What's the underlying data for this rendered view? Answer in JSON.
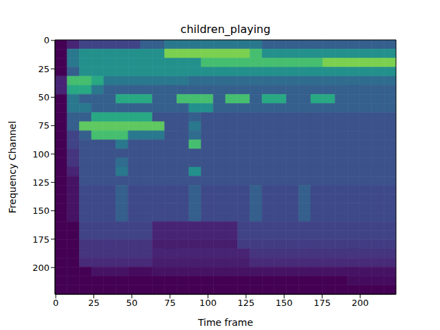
{
  "chart_data": {
    "type": "heatmap",
    "title": "children_playing",
    "xlabel": "Time frame",
    "ylabel": "Frequency Channel",
    "xlim": [
      -0.5,
      223.5
    ],
    "ylim": [
      223.5,
      -0.5
    ],
    "xticks": [
      0,
      25,
      50,
      75,
      100,
      125,
      150,
      175,
      200
    ],
    "yticks": [
      0,
      25,
      50,
      75,
      100,
      125,
      150,
      175,
      200
    ],
    "grid": false,
    "color_range": [
      0,
      1
    ],
    "cells": [
      [
        0,
        0.1,
        0.2,
        0.2,
        0.2,
        0.2,
        0.2,
        0.3,
        0.3,
        0.4,
        0.4,
        0.4,
        0.4,
        0.4,
        0.4,
        0.4,
        0.4,
        0.3,
        0.3,
        0.3,
        0.3,
        0.3,
        0.3,
        0.3,
        0.3,
        0.3,
        0.3,
        0.3
      ],
      [
        0,
        0.4,
        0.5,
        0.5,
        0.5,
        0.5,
        0.5,
        0.5,
        0.5,
        0.8,
        0.8,
        0.8,
        0.8,
        0.8,
        0.8,
        0.8,
        0.7,
        0.5,
        0.5,
        0.5,
        0.5,
        0.5,
        0.5,
        0.5,
        0.5,
        0.5,
        0.5,
        0.5
      ],
      [
        0,
        0.4,
        0.5,
        0.5,
        0.5,
        0.5,
        0.5,
        0.5,
        0.5,
        0.5,
        0.5,
        0.5,
        0.7,
        0.7,
        0.7,
        0.7,
        0.7,
        0.7,
        0.7,
        0.7,
        0.7,
        0.7,
        0.8,
        0.8,
        0.8,
        0.8,
        0.8,
        0.8
      ],
      [
        0,
        0.3,
        0.5,
        0.5,
        0.5,
        0.5,
        0.5,
        0.5,
        0.5,
        0.5,
        0.5,
        0.5,
        0.5,
        0.5,
        0.5,
        0.5,
        0.5,
        0.5,
        0.5,
        0.5,
        0.5,
        0.5,
        0.5,
        0.5,
        0.5,
        0.5,
        0.5,
        0.5
      ],
      [
        0.1,
        0.7,
        0.7,
        0.6,
        0.4,
        0.4,
        0.4,
        0.4,
        0.4,
        0.4,
        0.4,
        0.35,
        0.35,
        0.35,
        0.35,
        0.35,
        0.35,
        0.35,
        0.35,
        0.35,
        0.35,
        0.35,
        0.35,
        0.35,
        0.35,
        0.35,
        0.35,
        0.35
      ],
      [
        0.1,
        0.6,
        0.6,
        0.4,
        0.3,
        0.3,
        0.3,
        0.3,
        0.3,
        0.3,
        0.3,
        0.3,
        0.3,
        0.3,
        0.3,
        0.3,
        0.3,
        0.3,
        0.3,
        0.3,
        0.3,
        0.3,
        0.3,
        0.3,
        0.3,
        0.3,
        0.3,
        0.3
      ],
      [
        0,
        0.4,
        0.3,
        0.3,
        0.3,
        0.6,
        0.6,
        0.6,
        0.3,
        0.3,
        0.7,
        0.7,
        0.7,
        0.3,
        0.7,
        0.7,
        0.3,
        0.6,
        0.6,
        0.3,
        0.3,
        0.6,
        0.6,
        0.3,
        0.3,
        0.3,
        0.3,
        0.3
      ],
      [
        0,
        0.4,
        0.4,
        0.3,
        0.3,
        0.3,
        0.3,
        0.3,
        0.3,
        0.3,
        0.3,
        0.5,
        0.5,
        0.3,
        0.3,
        0.3,
        0.3,
        0.3,
        0.3,
        0.3,
        0.3,
        0.3,
        0.3,
        0.3,
        0.3,
        0.3,
        0.3,
        0.3
      ],
      [
        0,
        0.3,
        0.3,
        0.6,
        0.6,
        0.6,
        0.6,
        0.6,
        0.25,
        0.25,
        0.25,
        0.3,
        0.25,
        0.25,
        0.25,
        0.25,
        0.25,
        0.25,
        0.25,
        0.25,
        0.25,
        0.25,
        0.25,
        0.25,
        0.25,
        0.25,
        0.25,
        0.25
      ],
      [
        0,
        0.3,
        0.75,
        0.75,
        0.75,
        0.75,
        0.75,
        0.75,
        0.75,
        0.25,
        0.25,
        0.4,
        0.25,
        0.25,
        0.25,
        0.25,
        0.25,
        0.25,
        0.25,
        0.25,
        0.25,
        0.25,
        0.25,
        0.25,
        0.25,
        0.25,
        0.25,
        0.25
      ],
      [
        0,
        0.2,
        0.3,
        0.7,
        0.7,
        0.7,
        0.4,
        0.4,
        0.4,
        0.25,
        0.25,
        0.35,
        0.25,
        0.25,
        0.25,
        0.25,
        0.25,
        0.25,
        0.25,
        0.25,
        0.25,
        0.25,
        0.25,
        0.25,
        0.25,
        0.25,
        0.25,
        0.25
      ],
      [
        0,
        0.2,
        0.25,
        0.25,
        0.25,
        0.4,
        0.25,
        0.25,
        0.25,
        0.25,
        0.25,
        0.7,
        0.25,
        0.25,
        0.25,
        0.25,
        0.25,
        0.25,
        0.25,
        0.25,
        0.25,
        0.25,
        0.25,
        0.25,
        0.25,
        0.25,
        0.25,
        0.25
      ],
      [
        0,
        0.15,
        0.25,
        0.25,
        0.25,
        0.25,
        0.25,
        0.25,
        0.25,
        0.25,
        0.25,
        0.25,
        0.25,
        0.25,
        0.25,
        0.25,
        0.25,
        0.25,
        0.25,
        0.25,
        0.25,
        0.25,
        0.25,
        0.25,
        0.25,
        0.25,
        0.25,
        0.25
      ],
      [
        0,
        0.15,
        0.25,
        0.25,
        0.25,
        0.35,
        0.25,
        0.25,
        0.25,
        0.25,
        0.25,
        0.25,
        0.25,
        0.25,
        0.25,
        0.25,
        0.25,
        0.25,
        0.25,
        0.25,
        0.25,
        0.25,
        0.25,
        0.25,
        0.25,
        0.25,
        0.25,
        0.25
      ],
      [
        0,
        0.1,
        0.25,
        0.25,
        0.25,
        0.4,
        0.25,
        0.25,
        0.25,
        0.25,
        0.25,
        0.5,
        0.25,
        0.25,
        0.25,
        0.25,
        0.25,
        0.25,
        0.25,
        0.25,
        0.25,
        0.25,
        0.25,
        0.25,
        0.25,
        0.25,
        0.25,
        0.25
      ],
      [
        0,
        0.05,
        0.25,
        0.25,
        0.25,
        0.25,
        0.25,
        0.25,
        0.25,
        0.25,
        0.25,
        0.25,
        0.25,
        0.25,
        0.25,
        0.25,
        0.25,
        0.25,
        0.25,
        0.25,
        0.25,
        0.25,
        0.25,
        0.25,
        0.25,
        0.25,
        0.25,
        0.25
      ],
      [
        0,
        0.05,
        0.22,
        0.22,
        0.22,
        0.3,
        0.22,
        0.22,
        0.22,
        0.22,
        0.22,
        0.3,
        0.22,
        0.22,
        0.22,
        0.22,
        0.3,
        0.22,
        0.22,
        0.22,
        0.3,
        0.22,
        0.22,
        0.22,
        0.22,
        0.22,
        0.22,
        0.22
      ],
      [
        0,
        0.05,
        0.22,
        0.22,
        0.22,
        0.3,
        0.22,
        0.22,
        0.22,
        0.22,
        0.22,
        0.3,
        0.22,
        0.22,
        0.22,
        0.22,
        0.3,
        0.22,
        0.22,
        0.22,
        0.3,
        0.22,
        0.22,
        0.22,
        0.22,
        0.22,
        0.22,
        0.22
      ],
      [
        0,
        0.05,
        0.22,
        0.22,
        0.22,
        0.3,
        0.22,
        0.22,
        0.22,
        0.22,
        0.22,
        0.3,
        0.22,
        0.22,
        0.22,
        0.22,
        0.3,
        0.22,
        0.22,
        0.22,
        0.3,
        0.22,
        0.22,
        0.22,
        0.22,
        0.22,
        0.22,
        0.22
      ],
      [
        0,
        0.05,
        0.22,
        0.22,
        0.22,
        0.3,
        0.22,
        0.22,
        0.22,
        0.22,
        0.22,
        0.3,
        0.22,
        0.22,
        0.22,
        0.22,
        0.3,
        0.22,
        0.22,
        0.22,
        0.3,
        0.22,
        0.22,
        0.22,
        0.22,
        0.22,
        0.22,
        0.22
      ],
      [
        0,
        0,
        0.2,
        0.2,
        0.2,
        0.2,
        0.2,
        0.2,
        0.1,
        0.1,
        0.1,
        0.1,
        0.1,
        0.1,
        0.1,
        0.2,
        0.2,
        0.2,
        0.2,
        0.2,
        0.2,
        0.2,
        0.2,
        0.2,
        0.2,
        0.2,
        0.2,
        0.2
      ],
      [
        0,
        0,
        0.2,
        0.2,
        0.2,
        0.2,
        0.2,
        0.2,
        0.1,
        0.1,
        0.1,
        0.1,
        0.1,
        0.1,
        0.1,
        0.2,
        0.2,
        0.2,
        0.2,
        0.2,
        0.2,
        0.2,
        0.2,
        0.2,
        0.2,
        0.2,
        0.2,
        0.2
      ],
      [
        0,
        0,
        0.15,
        0.15,
        0.15,
        0.15,
        0.15,
        0.15,
        0.08,
        0.08,
        0.08,
        0.08,
        0.08,
        0.08,
        0.08,
        0.18,
        0.18,
        0.18,
        0.18,
        0.18,
        0.18,
        0.18,
        0.18,
        0.18,
        0.18,
        0.18,
        0.18,
        0.18
      ],
      [
        0,
        0,
        0.15,
        0.15,
        0.15,
        0.15,
        0.15,
        0.15,
        0.1,
        0.1,
        0.1,
        0.1,
        0.1,
        0.1,
        0.1,
        0.1,
        0.15,
        0.15,
        0.15,
        0.15,
        0.15,
        0.15,
        0.15,
        0.15,
        0.15,
        0.15,
        0.15,
        0.15
      ],
      [
        0,
        0,
        0.12,
        0.12,
        0.12,
        0.12,
        0.12,
        0.12,
        0.08,
        0.08,
        0.08,
        0.08,
        0.08,
        0.08,
        0.08,
        0.08,
        0.12,
        0.12,
        0.12,
        0.12,
        0.12,
        0.12,
        0.12,
        0.12,
        0.12,
        0.12,
        0.12,
        0.12
      ],
      [
        0,
        0,
        0,
        0.05,
        0.05,
        0.05,
        0.03,
        0.03,
        0.05,
        0.05,
        0.05,
        0.05,
        0.05,
        0.05,
        0.05,
        0.05,
        0.05,
        0.05,
        0.05,
        0.05,
        0.05,
        0.05,
        0.05,
        0.05,
        0.05,
        0.05,
        0.05,
        0.05
      ],
      [
        0,
        0,
        0,
        0,
        0,
        0,
        0,
        0,
        0,
        0,
        0,
        0,
        0,
        0,
        0,
        0,
        0,
        0,
        0,
        0,
        0,
        0,
        0,
        0,
        0.03,
        0.03,
        0.03,
        0.03
      ],
      [
        0,
        0,
        0,
        0,
        0,
        0,
        0,
        0,
        0,
        0,
        0,
        0,
        0,
        0,
        0,
        0,
        0,
        0,
        0,
        0,
        0,
        0,
        0,
        0,
        0,
        0,
        0,
        0
      ]
    ]
  }
}
